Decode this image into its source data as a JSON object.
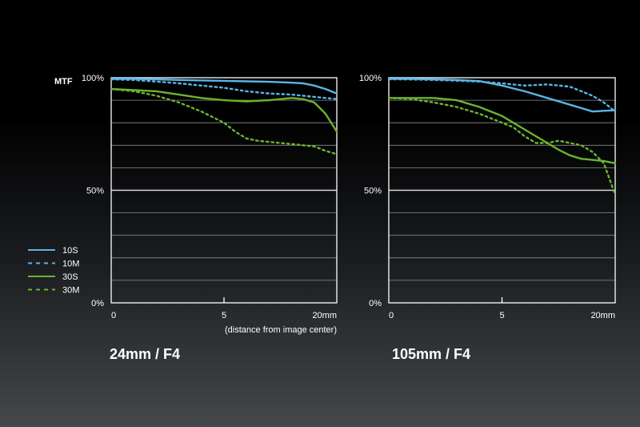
{
  "mtf_label": "MTF",
  "distance_note": "(distance from image center)",
  "legend": [
    {
      "name": "10S",
      "color": "#5ab4e6",
      "style": "solid"
    },
    {
      "name": "10M",
      "color": "#5ab4e6",
      "style": "dotted"
    },
    {
      "name": "30S",
      "color": "#6ab431",
      "style": "solid"
    },
    {
      "name": "30M",
      "color": "#6ab431",
      "style": "dotted"
    }
  ],
  "chart_data": [
    {
      "type": "line",
      "title": "24mm / F4",
      "xlabel": "(distance from image center)",
      "ylabel": "MTF",
      "xlim": [
        0,
        20
      ],
      "ylim": [
        0,
        100
      ],
      "x_tick_labels": [
        "0",
        "5",
        "20mm"
      ],
      "y_tick_labels": [
        "0%",
        "50%",
        "100%"
      ],
      "grid": true,
      "series": [
        {
          "name": "10S",
          "x": [
            0,
            2,
            4,
            6,
            8,
            10,
            12,
            14,
            16,
            17,
            18,
            19,
            20
          ],
          "y": [
            99.5,
            99.5,
            99.3,
            99,
            98.8,
            98.6,
            98.4,
            98.2,
            97.8,
            97.5,
            96.5,
            95,
            93
          ]
        },
        {
          "name": "10M",
          "x": [
            0,
            2,
            4,
            6,
            8,
            10,
            12,
            14,
            16,
            18,
            20
          ],
          "y": [
            99.3,
            99,
            98.3,
            97.5,
            96.5,
            95.5,
            94,
            93,
            92.5,
            91.5,
            90.5
          ]
        },
        {
          "name": "30S",
          "x": [
            0,
            2,
            4,
            6,
            8,
            10,
            12,
            14,
            16,
            17,
            18,
            19,
            20
          ],
          "y": [
            95,
            94.5,
            94,
            92.5,
            91,
            90,
            89.5,
            90,
            91,
            90.5,
            89,
            84,
            76
          ]
        },
        {
          "name": "30M",
          "x": [
            0,
            2,
            4,
            6,
            8,
            10,
            11,
            12,
            13,
            14,
            15,
            16,
            17,
            18,
            19,
            20
          ],
          "y": [
            95,
            94,
            92,
            89,
            85,
            80,
            76,
            73,
            72,
            71.5,
            71,
            70.5,
            70,
            69.5,
            67.5,
            66
          ]
        }
      ]
    },
    {
      "type": "line",
      "title": "105mm / F4",
      "xlabel": "",
      "ylabel": "",
      "xlim": [
        0,
        20
      ],
      "ylim": [
        0,
        100
      ],
      "x_tick_labels": [
        "0",
        "5",
        "20mm"
      ],
      "y_tick_labels": [
        "0%",
        "50%",
        "100%"
      ],
      "grid": true,
      "series": [
        {
          "name": "10S",
          "x": [
            0,
            2,
            4,
            6,
            8,
            10,
            12,
            14,
            16,
            17,
            18,
            19,
            20
          ],
          "y": [
            99.5,
            99.5,
            99.3,
            99,
            98.5,
            96.5,
            94,
            91,
            88,
            86.5,
            85,
            85.3,
            85.5
          ]
        },
        {
          "name": "10M",
          "x": [
            0,
            2,
            4,
            6,
            8,
            10,
            12,
            14,
            16,
            18,
            19,
            20
          ],
          "y": [
            99.3,
            99.2,
            99,
            98.7,
            98.3,
            97.5,
            96.5,
            97,
            96,
            92,
            89,
            85
          ]
        },
        {
          "name": "30S",
          "x": [
            0,
            2,
            4,
            6,
            8,
            10,
            11,
            12,
            13,
            14,
            15,
            16,
            17,
            18,
            19,
            20
          ],
          "y": [
            91,
            91,
            91,
            90,
            87,
            83,
            80,
            77,
            74,
            71,
            68,
            65.5,
            64,
            63.5,
            63,
            62
          ]
        },
        {
          "name": "30M",
          "x": [
            0,
            2,
            4,
            6,
            8,
            10,
            11,
            12,
            13,
            14,
            15,
            16,
            17,
            18,
            19,
            20
          ],
          "y": [
            91,
            90.5,
            89,
            87,
            84,
            80,
            78,
            74,
            71,
            71,
            72,
            71,
            70,
            67,
            62,
            48
          ]
        }
      ]
    }
  ]
}
